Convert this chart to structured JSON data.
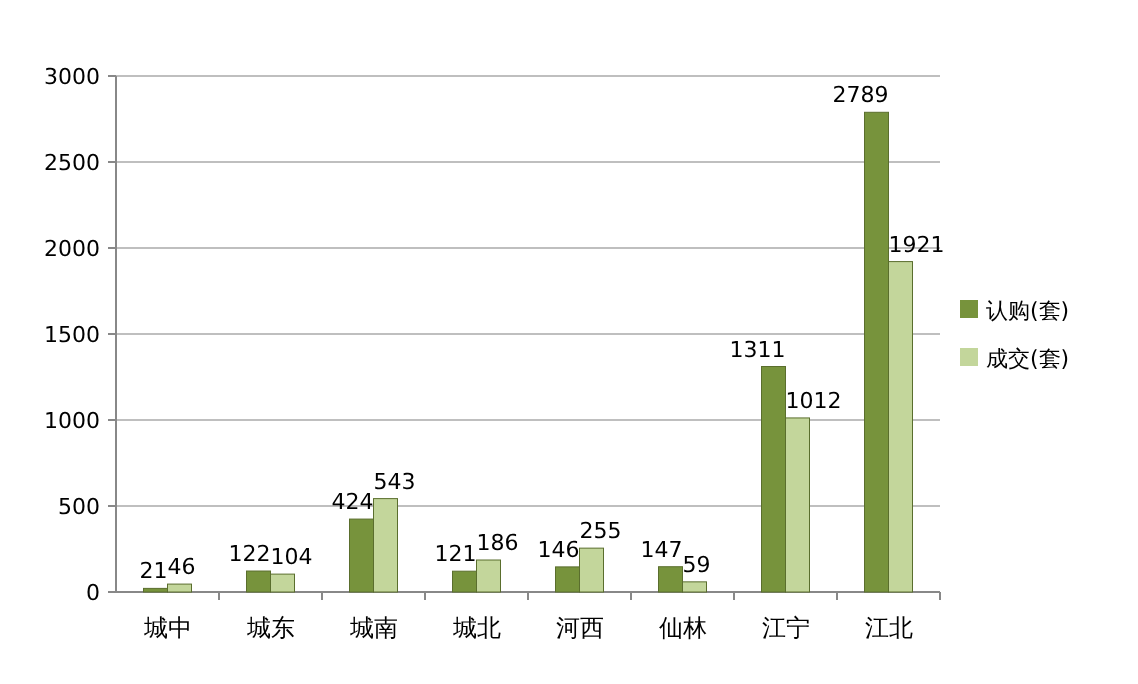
{
  "chart_data": {
    "type": "bar",
    "categories": [
      "城中",
      "城东",
      "城南",
      "城北",
      "河西",
      "仙林",
      "江宁",
      "江北"
    ],
    "series": [
      {
        "name": "认购(套)",
        "color": "#77933c",
        "values": [
          21,
          122,
          424,
          121,
          146,
          147,
          1311,
          2789
        ]
      },
      {
        "name": "成交(套)",
        "color": "#c3d69b",
        "values": [
          46,
          104,
          543,
          186,
          255,
          59,
          1012,
          1921
        ]
      }
    ],
    "ylim": [
      0,
      3000
    ],
    "yticks": [
      0,
      500,
      1000,
      1500,
      2000,
      2500,
      3000
    ],
    "grid": "y",
    "legend": "right",
    "data_labels": true
  }
}
